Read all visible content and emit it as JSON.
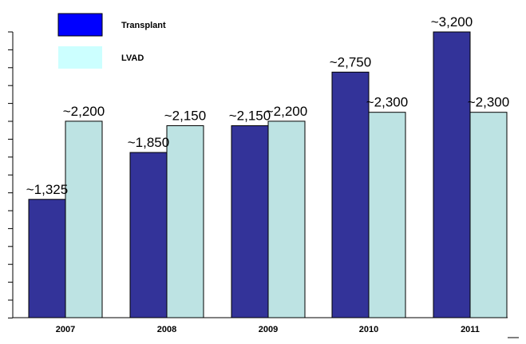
{
  "chart_data": {
    "type": "bar",
    "categories": [
      "2007",
      "2008",
      "2009",
      "2010",
      "2011"
    ],
    "series": [
      {
        "name": "Transplant",
        "color": "#333399",
        "values": [
          1325,
          1850,
          2150,
          2750,
          3200
        ],
        "labels": [
          "~1,325",
          "~1,850",
          "~2,150",
          "~2,750",
          "~3,200"
        ]
      },
      {
        "name": "LVAD",
        "color": "#bde3e3",
        "values": [
          2200,
          2150,
          2200,
          2300,
          2300
        ],
        "labels": [
          "~2,200",
          "~2,150",
          "~2,200",
          "~2,300",
          "~2,300"
        ]
      }
    ],
    "ylim": [
      0,
      3400
    ],
    "legend": {
      "placement": "top-left",
      "swatch_colors": [
        "#0000ff",
        "#ccffff"
      ]
    },
    "grid": false
  }
}
